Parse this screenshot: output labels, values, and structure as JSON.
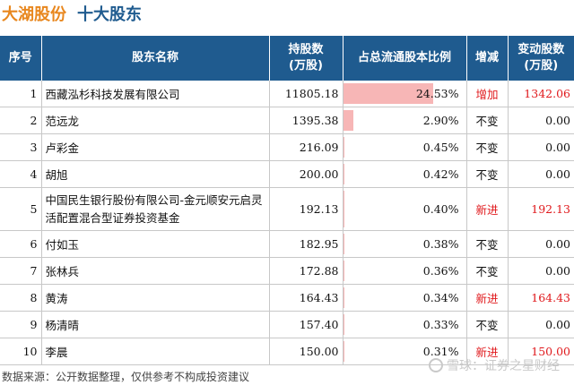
{
  "title": {
    "company": "大湖股份",
    "subtitle": "十大股东"
  },
  "headers": {
    "index": "序号",
    "name": "股东名称",
    "shares_line1": "持股数",
    "shares_line2": "(万股)",
    "ratio": "占总流通股本比例",
    "change": "增减",
    "delta_line1": "变动股数",
    "delta_line2": "(万股)"
  },
  "colors": {
    "header_bg": "#1f5b8f",
    "title_orange": "#e8871e",
    "bar": "#f7b6b6",
    "increase_red": "#e0191c"
  },
  "rows": [
    {
      "index": "1",
      "name": "西藏泓杉科技发展有限公司",
      "shares": "11805.18",
      "ratio": "24.53%",
      "ratio_value": 24.53,
      "change": "增加",
      "delta": "1342.06"
    },
    {
      "index": "2",
      "name": "范远龙",
      "shares": "1395.38",
      "ratio": "2.90%",
      "ratio_value": 2.9,
      "change": "不变",
      "delta": "0.00"
    },
    {
      "index": "3",
      "name": "卢彩金",
      "shares": "216.09",
      "ratio": "0.45%",
      "ratio_value": 0.45,
      "change": "不变",
      "delta": "0.00"
    },
    {
      "index": "4",
      "name": "胡旭",
      "shares": "200.00",
      "ratio": "0.42%",
      "ratio_value": 0.42,
      "change": "不变",
      "delta": "0.00"
    },
    {
      "index": "5",
      "name": "中国民生银行股份有限公司-金元顺安元启灵活配置混合型证券投资基金",
      "shares": "192.13",
      "ratio": "0.40%",
      "ratio_value": 0.4,
      "change": "新进",
      "delta": "192.13"
    },
    {
      "index": "6",
      "name": "付如玉",
      "shares": "182.95",
      "ratio": "0.38%",
      "ratio_value": 0.38,
      "change": "不变",
      "delta": "0.00"
    },
    {
      "index": "7",
      "name": "张林兵",
      "shares": "172.88",
      "ratio": "0.36%",
      "ratio_value": 0.36,
      "change": "不变",
      "delta": "0.00"
    },
    {
      "index": "8",
      "name": "黄涛",
      "shares": "164.43",
      "ratio": "0.34%",
      "ratio_value": 0.34,
      "change": "新进",
      "delta": "164.43"
    },
    {
      "index": "9",
      "name": "杨清晴",
      "shares": "157.40",
      "ratio": "0.33%",
      "ratio_value": 0.33,
      "change": "不变",
      "delta": "0.00"
    },
    {
      "index": "10",
      "name": "李晨",
      "shares": "150.00",
      "ratio": "0.31%",
      "ratio_value": 0.31,
      "change": "新进",
      "delta": "150.00"
    }
  ],
  "footer": "数据来源：公开数据整理，仅供参考不构成投资建议",
  "watermark": "雪球：证券之星财经"
}
